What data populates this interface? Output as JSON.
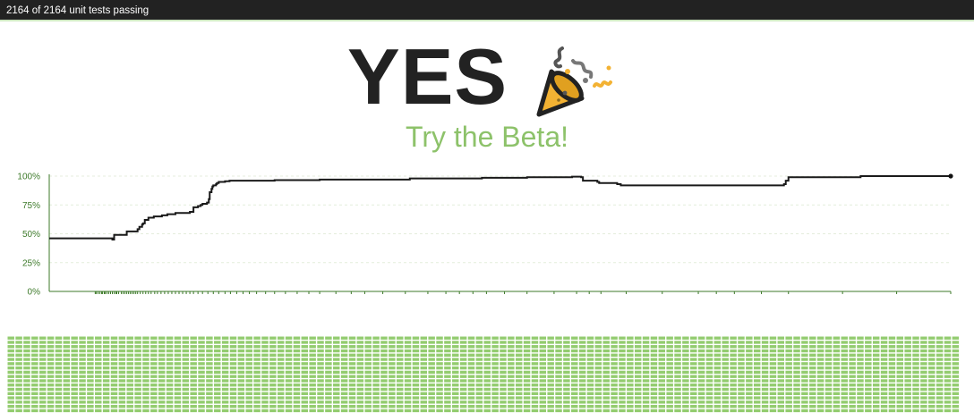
{
  "header": {
    "status_text": "2164 of 2164 unit tests passing",
    "passed": 2164,
    "total": 2164
  },
  "hero": {
    "title": "YES",
    "icon": "party-popper-icon",
    "link_text": "Try the Beta!"
  },
  "colors": {
    "bar_bg": "#222222",
    "accent_green": "#8dc26a",
    "tile_green": "#93cc6f",
    "axis_green": "#3d7a2a",
    "line": "#1a1a1a",
    "popper_orange": "#f3b233"
  },
  "chart_data": {
    "type": "line",
    "ylabel": "",
    "xlabel": "",
    "ylim": [
      0,
      100
    ],
    "y_ticks": [
      "100%",
      "75%",
      "50%",
      "25%",
      "0%"
    ],
    "grid": true,
    "x_range": [
      0,
      1000
    ],
    "series": [
      {
        "x": [
          0,
          70,
          72,
          85,
          86,
          97,
          98,
          100,
          103,
          104,
          106,
          109,
          110,
          113,
          116,
          120,
          125,
          131,
          135,
          140,
          146,
          150,
          156,
          160,
          165,
          168,
          170,
          175,
          177,
          178,
          180,
          181,
          182,
          185,
          186,
          188,
          190,
          195,
          200,
          250,
          300,
          400,
          480,
          530,
          555,
          580,
          590,
          592,
          600,
          608,
          610,
          630,
          634,
          680,
          780,
          815,
          817,
          820,
          900,
          1000
        ],
        "y": [
          46,
          45,
          49,
          49,
          52,
          52,
          54,
          56,
          58,
          59,
          62,
          62,
          64,
          64,
          65,
          65,
          66,
          67,
          67,
          68,
          68,
          68,
          69,
          73,
          74,
          75,
          76,
          77,
          80,
          86,
          89,
          91,
          92,
          93,
          94,
          95,
          95,
          95.5,
          96,
          96.5,
          97,
          98,
          98.5,
          99,
          99,
          99.5,
          99,
          96,
          96,
          95,
          94,
          93,
          92,
          92,
          92,
          93,
          96,
          99,
          100,
          100
        ]
      }
    ],
    "x_marks": [
      51,
      52,
      54,
      56,
      58,
      59,
      61,
      62,
      64,
      66,
      68,
      70,
      72,
      74,
      75,
      77,
      80,
      82,
      84,
      86,
      88,
      90,
      92,
      94,
      96,
      98,
      101,
      104,
      107,
      110,
      113,
      117,
      120,
      124,
      128,
      132,
      136,
      140,
      144,
      148,
      152,
      156,
      160,
      165,
      170,
      176,
      182,
      188,
      195,
      201,
      208,
      215,
      222,
      230,
      240,
      250,
      262,
      275,
      288,
      300,
      318,
      335,
      350,
      370,
      395,
      420,
      440,
      455,
      470,
      485,
      505,
      530,
      560,
      585,
      599,
      612,
      640,
      680,
      720,
      740,
      760,
      790,
      820,
      880,
      940,
      1000
    ]
  },
  "test_grid": {
    "passed": 2164,
    "columns": 120,
    "rows": 18
  }
}
